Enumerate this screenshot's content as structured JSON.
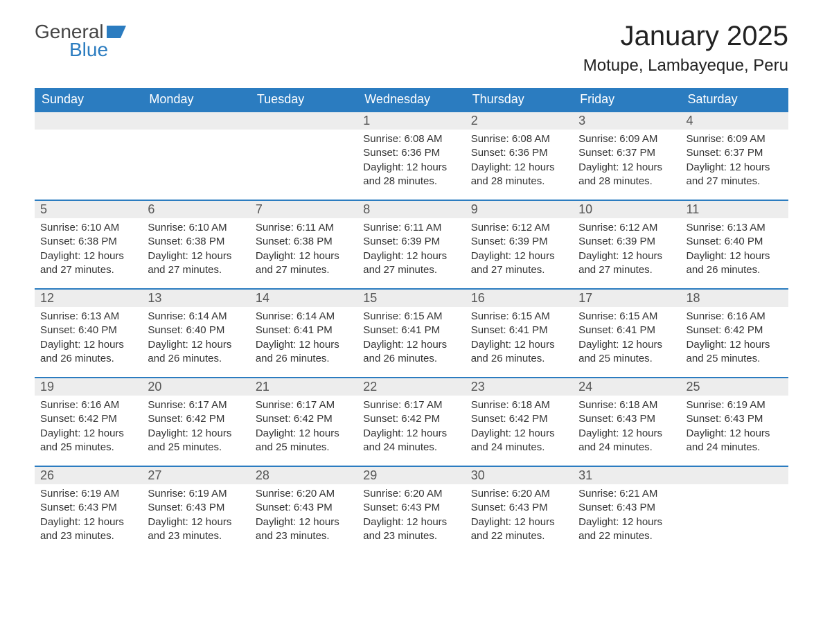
{
  "logo": {
    "word1": "General",
    "word2": "Blue",
    "flag_color": "#2b7cc0"
  },
  "title": "January 2025",
  "location": "Motupe, Lambayeque, Peru",
  "colors": {
    "header_bg": "#2b7cc0",
    "header_text": "#ffffff",
    "daynum_bg": "#ededed",
    "row_border": "#2b7cc0",
    "body_text": "#333333"
  },
  "day_headers": [
    "Sunday",
    "Monday",
    "Tuesday",
    "Wednesday",
    "Thursday",
    "Friday",
    "Saturday"
  ],
  "weeks": [
    [
      null,
      null,
      null,
      {
        "d": "1",
        "sr": "6:08 AM",
        "ss": "6:36 PM",
        "dl": "12 hours and 28 minutes."
      },
      {
        "d": "2",
        "sr": "6:08 AM",
        "ss": "6:36 PM",
        "dl": "12 hours and 28 minutes."
      },
      {
        "d": "3",
        "sr": "6:09 AM",
        "ss": "6:37 PM",
        "dl": "12 hours and 28 minutes."
      },
      {
        "d": "4",
        "sr": "6:09 AM",
        "ss": "6:37 PM",
        "dl": "12 hours and 27 minutes."
      }
    ],
    [
      {
        "d": "5",
        "sr": "6:10 AM",
        "ss": "6:38 PM",
        "dl": "12 hours and 27 minutes."
      },
      {
        "d": "6",
        "sr": "6:10 AM",
        "ss": "6:38 PM",
        "dl": "12 hours and 27 minutes."
      },
      {
        "d": "7",
        "sr": "6:11 AM",
        "ss": "6:38 PM",
        "dl": "12 hours and 27 minutes."
      },
      {
        "d": "8",
        "sr": "6:11 AM",
        "ss": "6:39 PM",
        "dl": "12 hours and 27 minutes."
      },
      {
        "d": "9",
        "sr": "6:12 AM",
        "ss": "6:39 PM",
        "dl": "12 hours and 27 minutes."
      },
      {
        "d": "10",
        "sr": "6:12 AM",
        "ss": "6:39 PM",
        "dl": "12 hours and 27 minutes."
      },
      {
        "d": "11",
        "sr": "6:13 AM",
        "ss": "6:40 PM",
        "dl": "12 hours and 26 minutes."
      }
    ],
    [
      {
        "d": "12",
        "sr": "6:13 AM",
        "ss": "6:40 PM",
        "dl": "12 hours and 26 minutes."
      },
      {
        "d": "13",
        "sr": "6:14 AM",
        "ss": "6:40 PM",
        "dl": "12 hours and 26 minutes."
      },
      {
        "d": "14",
        "sr": "6:14 AM",
        "ss": "6:41 PM",
        "dl": "12 hours and 26 minutes."
      },
      {
        "d": "15",
        "sr": "6:15 AM",
        "ss": "6:41 PM",
        "dl": "12 hours and 26 minutes."
      },
      {
        "d": "16",
        "sr": "6:15 AM",
        "ss": "6:41 PM",
        "dl": "12 hours and 26 minutes."
      },
      {
        "d": "17",
        "sr": "6:15 AM",
        "ss": "6:41 PM",
        "dl": "12 hours and 25 minutes."
      },
      {
        "d": "18",
        "sr": "6:16 AM",
        "ss": "6:42 PM",
        "dl": "12 hours and 25 minutes."
      }
    ],
    [
      {
        "d": "19",
        "sr": "6:16 AM",
        "ss": "6:42 PM",
        "dl": "12 hours and 25 minutes."
      },
      {
        "d": "20",
        "sr": "6:17 AM",
        "ss": "6:42 PM",
        "dl": "12 hours and 25 minutes."
      },
      {
        "d": "21",
        "sr": "6:17 AM",
        "ss": "6:42 PM",
        "dl": "12 hours and 25 minutes."
      },
      {
        "d": "22",
        "sr": "6:17 AM",
        "ss": "6:42 PM",
        "dl": "12 hours and 24 minutes."
      },
      {
        "d": "23",
        "sr": "6:18 AM",
        "ss": "6:42 PM",
        "dl": "12 hours and 24 minutes."
      },
      {
        "d": "24",
        "sr": "6:18 AM",
        "ss": "6:43 PM",
        "dl": "12 hours and 24 minutes."
      },
      {
        "d": "25",
        "sr": "6:19 AM",
        "ss": "6:43 PM",
        "dl": "12 hours and 24 minutes."
      }
    ],
    [
      {
        "d": "26",
        "sr": "6:19 AM",
        "ss": "6:43 PM",
        "dl": "12 hours and 23 minutes."
      },
      {
        "d": "27",
        "sr": "6:19 AM",
        "ss": "6:43 PM",
        "dl": "12 hours and 23 minutes."
      },
      {
        "d": "28",
        "sr": "6:20 AM",
        "ss": "6:43 PM",
        "dl": "12 hours and 23 minutes."
      },
      {
        "d": "29",
        "sr": "6:20 AM",
        "ss": "6:43 PM",
        "dl": "12 hours and 23 minutes."
      },
      {
        "d": "30",
        "sr": "6:20 AM",
        "ss": "6:43 PM",
        "dl": "12 hours and 22 minutes."
      },
      {
        "d": "31",
        "sr": "6:21 AM",
        "ss": "6:43 PM",
        "dl": "12 hours and 22 minutes."
      },
      null
    ]
  ],
  "labels": {
    "sunrise": "Sunrise: ",
    "sunset": "Sunset: ",
    "daylight": "Daylight: "
  }
}
